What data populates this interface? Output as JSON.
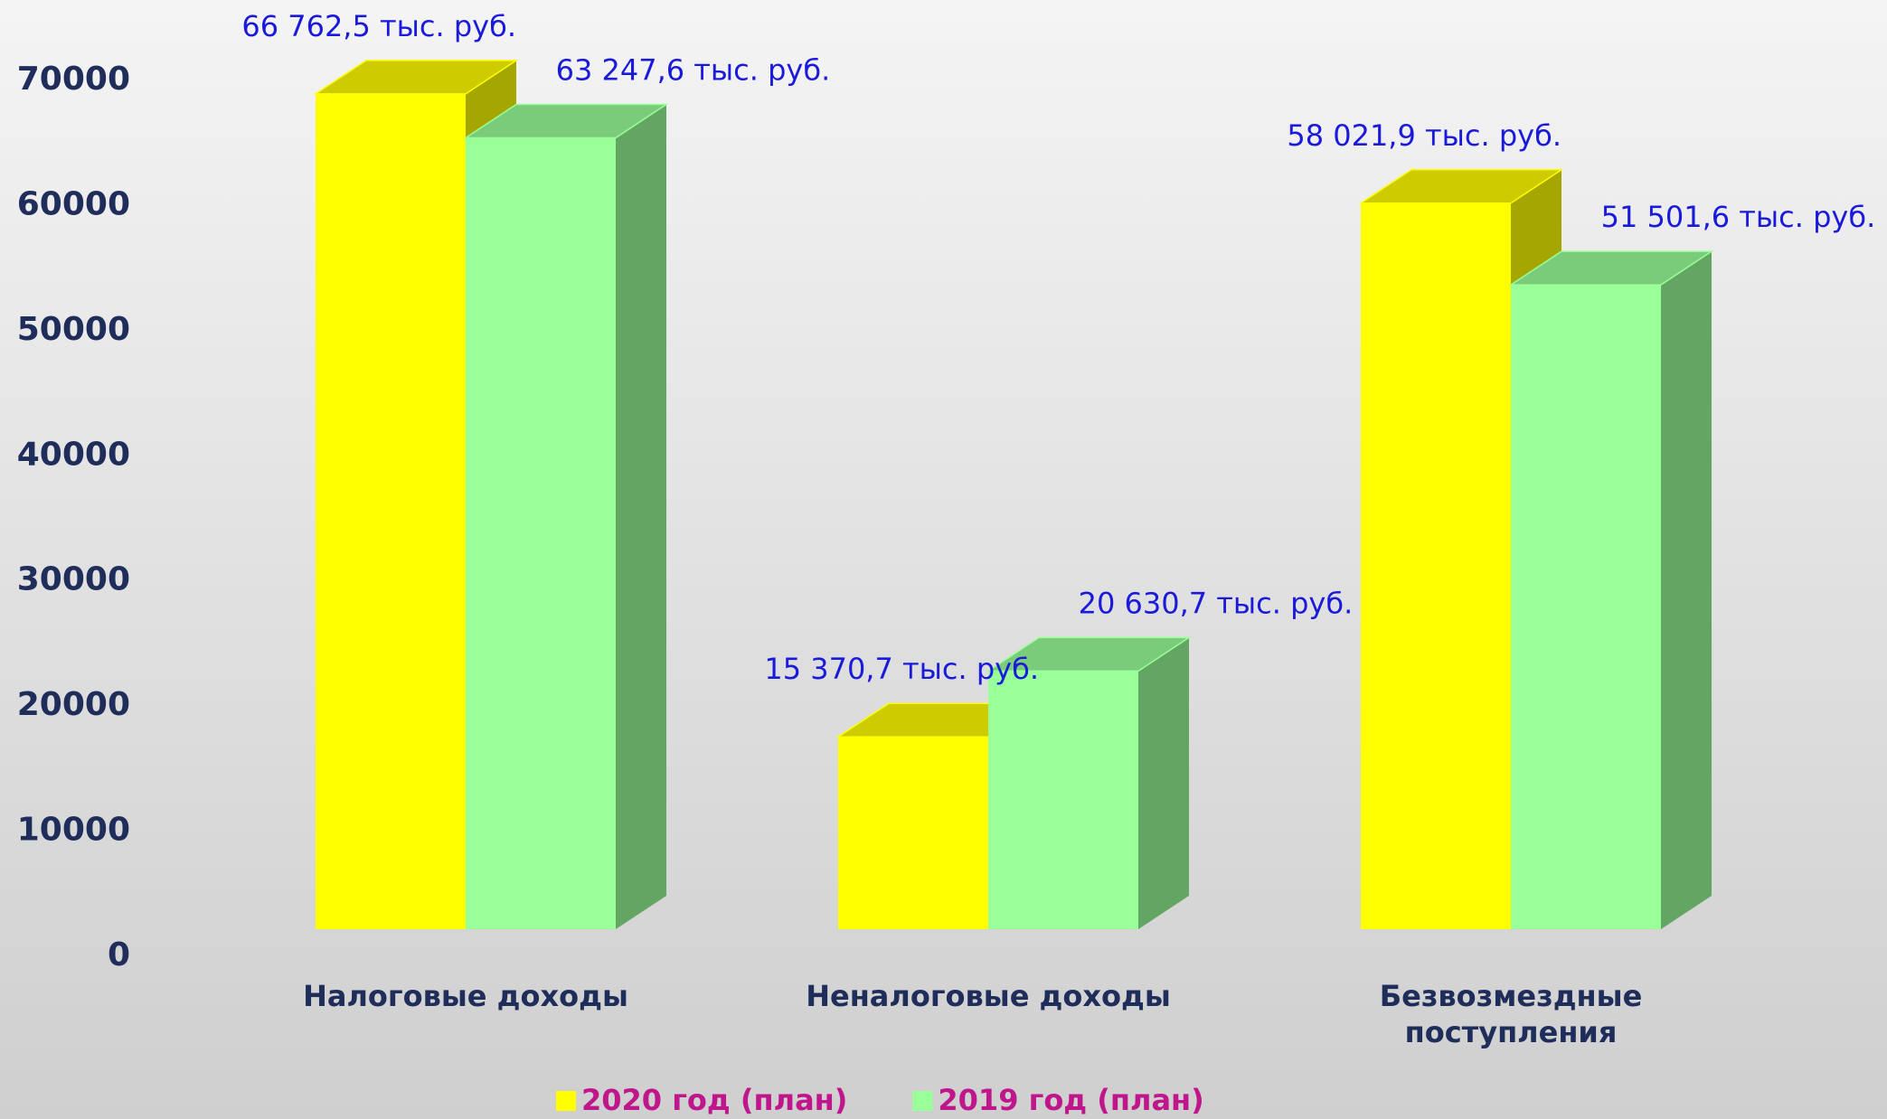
{
  "chart_data": {
    "type": "bar3d",
    "categories": [
      "Налоговые доходы",
      "Неналоговые доходы",
      "Безвозмездные поступления"
    ],
    "series": [
      {
        "name": "2020 год (план)",
        "color": "#ffff00",
        "values": [
          66762.5,
          15370.7,
          58021.9
        ],
        "value_labels": [
          "66 762,5 тыс. руб.",
          "15 370,7 тыс. руб.",
          "58 021,9 тыс. руб."
        ]
      },
      {
        "name": "2019 год (план)",
        "color": "#99ff99",
        "values": [
          63247.6,
          20630.7,
          51501.6
        ],
        "value_labels": [
          "63 247,6 тыс. руб.",
          "20 630,7 тыс. руб.",
          "51 501,6 тыс. руб."
        ]
      }
    ],
    "ylim": [
      0,
      70000
    ],
    "yticks": [
      0,
      10000,
      20000,
      30000,
      40000,
      50000,
      60000,
      70000
    ],
    "grid": false,
    "legend": "bottom"
  }
}
